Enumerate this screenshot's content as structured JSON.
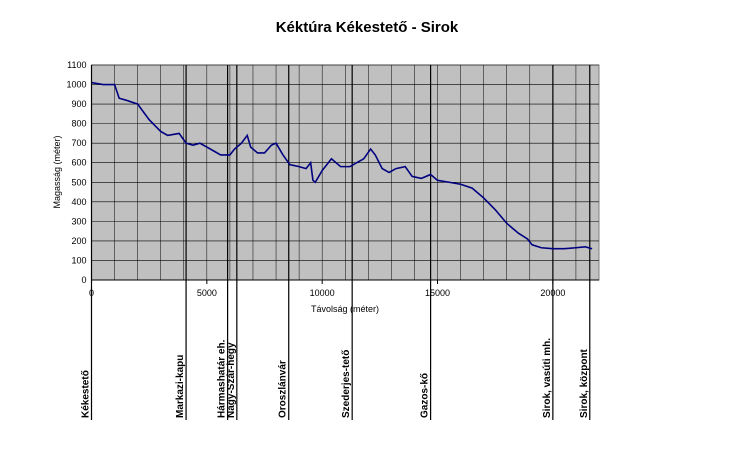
{
  "chart_data": {
    "type": "line",
    "title": "Kéktúra Kékestető - Sirok",
    "x_label": "Távolság (méter)",
    "y_label": "Magasság (méter)",
    "xlim": [
      0,
      22000
    ],
    "xticks": [
      0,
      5000,
      10000,
      15000,
      20000
    ],
    "ylim": [
      0,
      1100
    ],
    "yticks": [
      0,
      100,
      200,
      300,
      400,
      500,
      600,
      700,
      800,
      900,
      1000,
      1100
    ],
    "grid": true,
    "series": [
      {
        "name": "Magasság",
        "color": "#000080",
        "x": [
          0,
          500,
          1000,
          1200,
          1500,
          2000,
          2500,
          3000,
          3300,
          3800,
          4100,
          4400,
          4700,
          5000,
          5300,
          5600,
          6000,
          6200,
          6500,
          6750,
          6900,
          7200,
          7500,
          7800,
          8000,
          8300,
          8600,
          9000,
          9300,
          9500,
          9600,
          9700,
          10000,
          10400,
          10800,
          11200,
          11500,
          11800,
          12100,
          12300,
          12600,
          12900,
          13200,
          13600,
          13900,
          14300,
          14700,
          15000,
          15500,
          16000,
          16500,
          17000,
          17500,
          18000,
          18500,
          18900,
          19100,
          19500,
          20000,
          20500,
          21000,
          21400,
          21700
        ],
        "values": [
          1010,
          1000,
          1000,
          930,
          920,
          900,
          820,
          760,
          740,
          750,
          700,
          690,
          700,
          680,
          660,
          640,
          640,
          670,
          700,
          740,
          680,
          650,
          650,
          690,
          700,
          640,
          590,
          580,
          570,
          600,
          510,
          500,
          560,
          620,
          580,
          580,
          600,
          620,
          670,
          640,
          570,
          550,
          570,
          580,
          530,
          520,
          540,
          510,
          500,
          490,
          470,
          420,
          360,
          290,
          240,
          210,
          180,
          165,
          160,
          160,
          165,
          170,
          160
        ]
      }
    ],
    "landmarks": [
      {
        "x": 0,
        "name": "Kékestető"
      },
      {
        "x": 4100,
        "name": "Markazi-kapu"
      },
      {
        "x": 5900,
        "name": "Hármashatár eh."
      },
      {
        "x": 6300,
        "name": "Nagy-Szár-hegy"
      },
      {
        "x": 8550,
        "name": "Oroszlánvár"
      },
      {
        "x": 11300,
        "name": "Szederjes-tető"
      },
      {
        "x": 14700,
        "name": "Gazos-kő"
      },
      {
        "x": 20000,
        "name": "Sirok, vasúti mh."
      },
      {
        "x": 21600,
        "name": "Sirok, központ"
      }
    ]
  }
}
